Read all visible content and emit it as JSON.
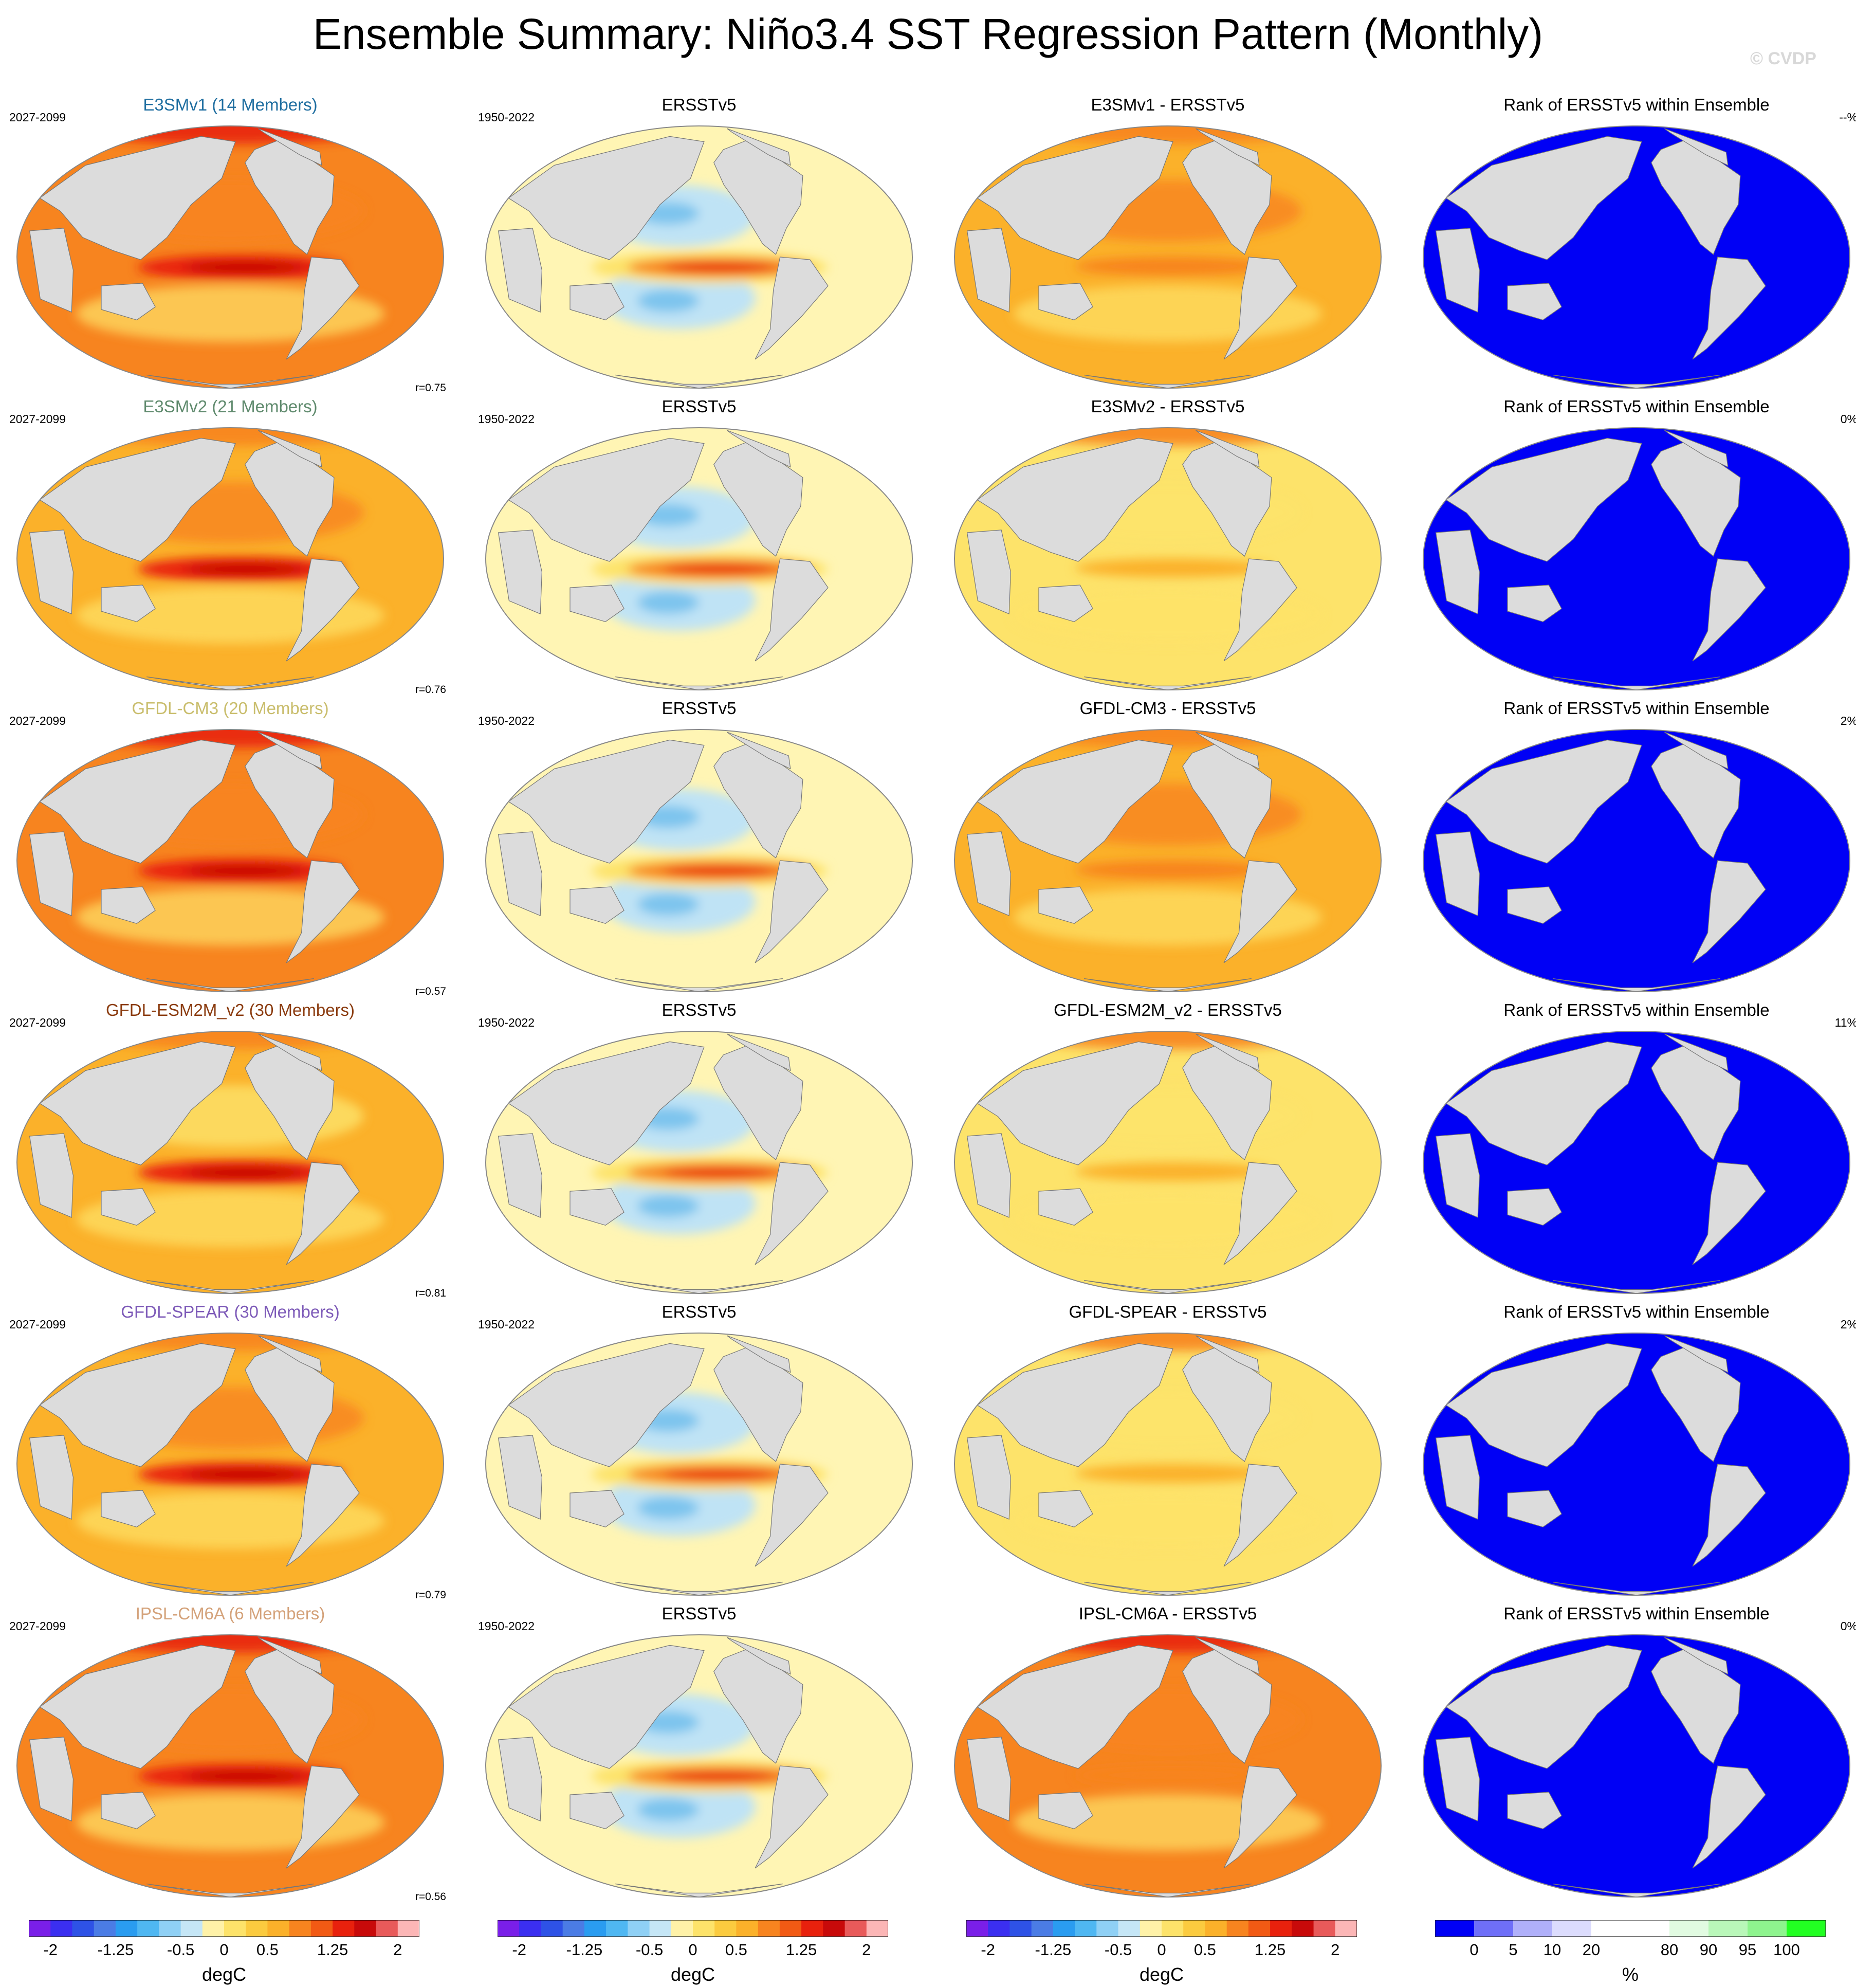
{
  "title": "Ensemble Summary: Niño3.4 SST Regression Pattern (Monthly)",
  "watermark": "© CVDP",
  "colors": {
    "land": "#dcdcdc",
    "ocean_fill": "#ffffff",
    "warm_light": "#fde36a",
    "warm_mid": "#fbb12a",
    "warm_orange": "#f7841f",
    "warm_red": "#e8210d",
    "warm_dark": "#c00000",
    "cool_light": "#bfe3f5",
    "cool_mid": "#7dc4ee",
    "rank_blue": "#0000f5",
    "rank_white": "#ffffff",
    "rank_green": "#22ff22"
  },
  "rows": [
    {
      "model": "E3SMv1 (14 Members)",
      "model_color": "#1f6ea0",
      "model_period": "2027-2099",
      "obs_title": "ERSSTv5",
      "obs_period": "1950-2022",
      "diff_title": "E3SMv1 - ERSSTv5",
      "rank_title": "Rank of ERSSTv5 within Ensemble",
      "rank_pct": "--%",
      "pattern_corr": "r=0.75",
      "model_level": 0.82,
      "diff_level": 0.62,
      "rank_nonblue_fraction": 0.0
    },
    {
      "model": "E3SMv2 (21 Members)",
      "model_color": "#5f8a6d",
      "model_period": "2027-2099",
      "obs_title": "ERSSTv5",
      "obs_period": "1950-2022",
      "diff_title": "E3SMv2 - ERSSTv5",
      "rank_title": "Rank of ERSSTv5 within Ensemble",
      "rank_pct": "0%",
      "pattern_corr": "r=0.76",
      "model_level": 0.66,
      "diff_level": 0.42,
      "rank_nonblue_fraction": 0.0
    },
    {
      "model": "GFDL-CM3 (20 Members)",
      "model_color": "#c9bd6c",
      "model_period": "2027-2099",
      "obs_title": "ERSSTv5",
      "obs_period": "1950-2022",
      "diff_title": "GFDL-CM3 - ERSSTv5",
      "rank_title": "Rank of ERSSTv5 within Ensemble",
      "rank_pct": "2%",
      "pattern_corr": "r=0.57",
      "model_level": 0.8,
      "diff_level": 0.64,
      "rank_nonblue_fraction": 0.02
    },
    {
      "model": "GFDL-ESM2M_v2 (30 Members)",
      "model_color": "#8b3c10",
      "model_period": "2027-2099",
      "obs_title": "ERSSTv5",
      "obs_period": "1950-2022",
      "diff_title": "GFDL-ESM2M_v2 - ERSSTv5",
      "rank_title": "Rank of ERSSTv5 within Ensemble",
      "rank_pct": "11%",
      "pattern_corr": "r=0.81",
      "model_level": 0.5,
      "diff_level": 0.3,
      "rank_nonblue_fraction": 0.11
    },
    {
      "model": "GFDL-SPEAR (30 Members)",
      "model_color": "#7d5ab8",
      "model_period": "2027-2099",
      "obs_title": "ERSSTv5",
      "obs_period": "1950-2022",
      "diff_title": "GFDL-SPEAR - ERSSTv5",
      "rank_title": "Rank of ERSSTv5 within Ensemble",
      "rank_pct": "2%",
      "pattern_corr": "r=0.79",
      "model_level": 0.66,
      "diff_level": 0.44,
      "rank_nonblue_fraction": 0.02
    },
    {
      "model": "IPSL-CM6A (6 Members)",
      "model_color": "#d4a27a",
      "model_period": "2027-2099",
      "obs_title": "ERSSTv5",
      "obs_period": "1950-2022",
      "diff_title": "IPSL-CM6A - ERSSTv5",
      "rank_title": "Rank of ERSSTv5 within Ensemble",
      "rank_pct": "0%",
      "pattern_corr": "r=0.56",
      "model_level": 0.92,
      "diff_level": 0.76,
      "rank_nonblue_fraction": 0.0
    }
  ],
  "colorbar_sst": {
    "colors": [
      "#7a1fe8",
      "#3b2ff0",
      "#2e52e6",
      "#4b7ce5",
      "#2a9cf0",
      "#4fb7f2",
      "#8fd0f5",
      "#c5e6f6",
      "#fff2a8",
      "#fde36a",
      "#fbcb3f",
      "#fbb12a",
      "#f7841f",
      "#f25a14",
      "#e8210d",
      "#c80a0a",
      "#e85a5a",
      "#fcb6b6"
    ],
    "ticks": [
      "-2",
      "-1.25",
      "-0.5",
      "0",
      "0.5",
      "1.25",
      "2"
    ],
    "tick_positions": [
      1,
      4,
      7,
      9,
      11,
      14,
      17
    ],
    "label": "degC"
  },
  "colorbar_rank": {
    "colors": [
      "#0000f5",
      "#6f6ff8",
      "#b0b0fa",
      "#dcdcfd",
      "#ffffff",
      "#ffffff",
      "#e1fbe1",
      "#b9f7b9",
      "#8ef48e",
      "#22ff22"
    ],
    "ticks": [
      "0",
      "5",
      "10",
      "20",
      "80",
      "90",
      "95",
      "100"
    ],
    "tick_positions": [
      1,
      2,
      3,
      4,
      6,
      7,
      8,
      9
    ],
    "label": "%"
  }
}
